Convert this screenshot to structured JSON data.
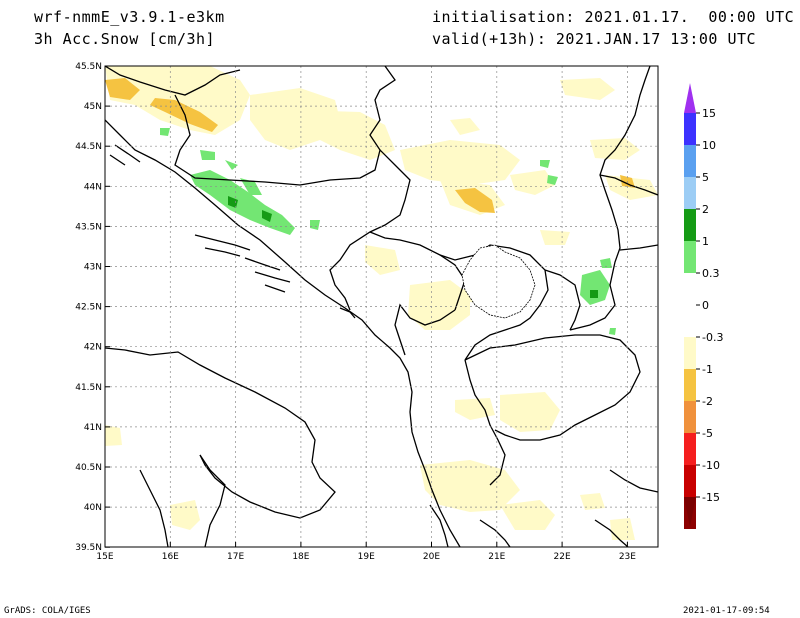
{
  "header": {
    "model": "wrf-nmmE_v3.9.1-e3km",
    "field": "3h Acc.Snow [cm/3h]",
    "init": "initialisation: 2021.01.17.  00:00 UTC",
    "valid": "valid(+13h): 2021.JAN.17 13:00 UTC"
  },
  "footer": {
    "left": "GrADS: COLA/IGES",
    "right": "2021-01-17-09:54"
  },
  "map": {
    "lon_labels": [
      "15E",
      "16E",
      "17E",
      "18E",
      "19E",
      "20E",
      "21E",
      "22E",
      "23E"
    ],
    "lat_labels": [
      "45.5N",
      "45N",
      "44.5N",
      "44N",
      "43.5N",
      "43N",
      "42.5N",
      "42N",
      "41.5N",
      "41N",
      "40.5N",
      "40N",
      "39.5N"
    ]
  },
  "colorbar": {
    "labels": [
      "15",
      "10",
      "5",
      "2",
      "1",
      "0.3",
      "0",
      "-0.3",
      "-1",
      "-2",
      "-5",
      "-10",
      "-15"
    ],
    "colors": [
      "#3c32ff",
      "#5aa0f0",
      "#9ccdf5",
      "#159b15",
      "#73e673",
      "#ffffff",
      "#ffffff",
      "#fffac8",
      "#f5c341",
      "#f0913c",
      "#f51e1e",
      "#c80000",
      "#8c0000"
    ],
    "top_tip": "#a030f0",
    "bottom_tip": "#7a0000"
  }
}
